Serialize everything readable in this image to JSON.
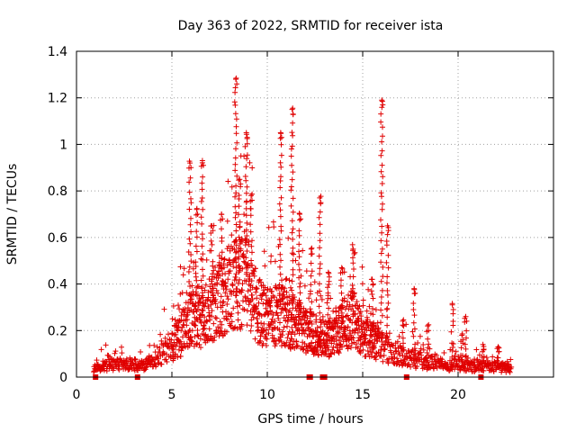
{
  "chart_data": {
    "type": "scatter",
    "title": "Day 363 of 2022, SRMTID for receiver ista",
    "xlabel": "GPS time / hours",
    "ylabel": "SRMTID / TECUs",
    "xlim": [
      0,
      25
    ],
    "ylim": [
      0,
      1.4
    ],
    "xticks": [
      0,
      5,
      10,
      15,
      20
    ],
    "xtick_labels": [
      "0",
      "5",
      "10",
      "15",
      "20"
    ],
    "yticks": [
      0,
      0.2,
      0.4,
      0.6,
      0.8,
      1.0,
      1.2,
      1.4
    ],
    "ytick_labels": [
      "0",
      "0.2",
      "0.4",
      "0.6",
      "0.8",
      "1",
      "1.2",
      "1.4"
    ],
    "grid": true,
    "marker": "+",
    "color": "#e00000",
    "envelope": [
      [
        0.9,
        0.05
      ],
      [
        1.5,
        0.055
      ],
      [
        2.0,
        0.06
      ],
      [
        3.0,
        0.06
      ],
      [
        3.5,
        0.06
      ],
      [
        4.0,
        0.08
      ],
      [
        4.5,
        0.12
      ],
      [
        5.0,
        0.15
      ],
      [
        5.5,
        0.2
      ],
      [
        5.9,
        0.3
      ],
      [
        6.5,
        0.28
      ],
      [
        7.0,
        0.32
      ],
      [
        7.5,
        0.38
      ],
      [
        8.0,
        0.42
      ],
      [
        8.5,
        0.45
      ],
      [
        9.0,
        0.45
      ],
      [
        9.5,
        0.32
      ],
      [
        10.0,
        0.28
      ],
      [
        10.5,
        0.3
      ],
      [
        11.0,
        0.28
      ],
      [
        11.5,
        0.25
      ],
      [
        12.0,
        0.22
      ],
      [
        12.5,
        0.2
      ],
      [
        13.0,
        0.18
      ],
      [
        13.5,
        0.2
      ],
      [
        14.0,
        0.25
      ],
      [
        14.5,
        0.28
      ],
      [
        15.0,
        0.2
      ],
      [
        15.5,
        0.18
      ],
      [
        16.0,
        0.14
      ],
      [
        16.5,
        0.12
      ],
      [
        17.0,
        0.1
      ],
      [
        17.5,
        0.09
      ],
      [
        18.0,
        0.08
      ],
      [
        18.5,
        0.07
      ],
      [
        19.0,
        0.06
      ],
      [
        20.0,
        0.06
      ],
      [
        21.0,
        0.05
      ],
      [
        22.0,
        0.05
      ],
      [
        22.8,
        0.04
      ]
    ],
    "spikes": [
      [
        5.95,
        0.92
      ],
      [
        6.3,
        0.72
      ],
      [
        6.6,
        0.93
      ],
      [
        7.1,
        0.65
      ],
      [
        7.6,
        0.7
      ],
      [
        8.35,
        1.28
      ],
      [
        8.55,
        0.85
      ],
      [
        8.9,
        1.05
      ],
      [
        9.15,
        0.78
      ],
      [
        10.7,
        1.05
      ],
      [
        11.3,
        1.15
      ],
      [
        11.7,
        0.7
      ],
      [
        12.3,
        0.55
      ],
      [
        12.75,
        0.77
      ],
      [
        13.2,
        0.45
      ],
      [
        13.9,
        0.47
      ],
      [
        14.5,
        0.55
      ],
      [
        15.5,
        0.42
      ],
      [
        16.0,
        1.19
      ],
      [
        16.3,
        0.65
      ],
      [
        17.1,
        0.24
      ],
      [
        17.7,
        0.38
      ],
      [
        18.4,
        0.22
      ],
      [
        19.7,
        0.31
      ],
      [
        20.2,
        0.18
      ],
      [
        20.4,
        0.26
      ],
      [
        21.3,
        0.14
      ],
      [
        22.1,
        0.13
      ]
    ],
    "zero_markers": [
      1.0,
      3.2,
      12.2,
      12.25,
      12.9,
      13.0,
      17.3,
      21.2
    ]
  }
}
